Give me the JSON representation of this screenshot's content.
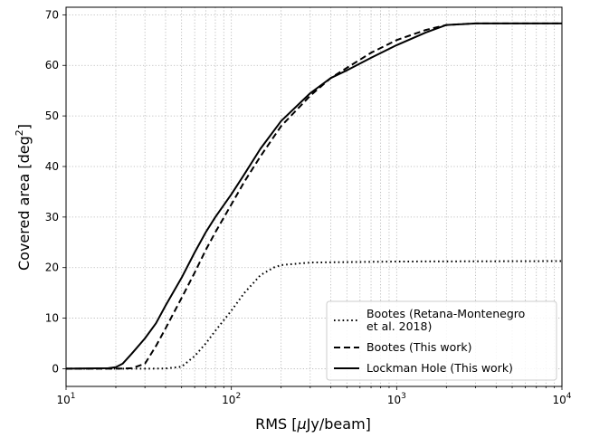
{
  "chart_data": {
    "type": "line",
    "xscale": "log",
    "xlim": [
      10,
      10000
    ],
    "ylim": [
      -3.5,
      71.5
    ],
    "xlabel_parts": [
      "RMS [",
      "μ",
      "Jy/beam]"
    ],
    "ylabel_parts": [
      "Covered area [deg",
      "2",
      "]"
    ],
    "x_ticks": [
      {
        "value": 10,
        "base": "10",
        "exp": "1"
      },
      {
        "value": 100,
        "base": "10",
        "exp": "2"
      },
      {
        "value": 1000,
        "base": "10",
        "exp": "3"
      },
      {
        "value": 10000,
        "base": "10",
        "exp": "4"
      }
    ],
    "y_ticks": [
      0,
      10,
      20,
      30,
      40,
      50,
      60,
      70
    ],
    "grid": true,
    "legend_position": "lower right",
    "series": [
      {
        "name": [
          "Bootes (Retana-Montenegro",
          " et al. 2018)"
        ],
        "style": "dotted",
        "points": [
          [
            10,
            0
          ],
          [
            20,
            0
          ],
          [
            30,
            0
          ],
          [
            40,
            0.05
          ],
          [
            50,
            0.4
          ],
          [
            60,
            2.5
          ],
          [
            70,
            5
          ],
          [
            80,
            7.5
          ],
          [
            100,
            11.5
          ],
          [
            120,
            15
          ],
          [
            150,
            18.5
          ],
          [
            180,
            20
          ],
          [
            200,
            20.5
          ],
          [
            300,
            21
          ],
          [
            1000,
            21.2
          ],
          [
            10000,
            21.3
          ]
        ]
      },
      {
        "name": [
          "Bootes (This work)"
        ],
        "style": "dashed",
        "points": [
          [
            10,
            0
          ],
          [
            20,
            0
          ],
          [
            25,
            0.1
          ],
          [
            30,
            1
          ],
          [
            35,
            4.5
          ],
          [
            40,
            8
          ],
          [
            50,
            14
          ],
          [
            60,
            19
          ],
          [
            70,
            23.5
          ],
          [
            80,
            27
          ],
          [
            100,
            32.5
          ],
          [
            120,
            37
          ],
          [
            150,
            42
          ],
          [
            200,
            48
          ],
          [
            300,
            54
          ],
          [
            400,
            57.5
          ],
          [
            500,
            59.5
          ],
          [
            700,
            62.5
          ],
          [
            1000,
            65
          ],
          [
            1500,
            67
          ],
          [
            2000,
            68
          ],
          [
            3000,
            68.3
          ],
          [
            10000,
            68.3
          ]
        ]
      },
      {
        "name": [
          "Lockman Hole (This work)"
        ],
        "style": "solid",
        "points": [
          [
            10,
            0
          ],
          [
            18,
            0.1
          ],
          [
            20,
            0.3
          ],
          [
            22,
            1
          ],
          [
            25,
            3
          ],
          [
            30,
            6
          ],
          [
            35,
            9
          ],
          [
            40,
            12.5
          ],
          [
            50,
            18
          ],
          [
            60,
            23
          ],
          [
            70,
            27
          ],
          [
            80,
            30
          ],
          [
            100,
            34.5
          ],
          [
            120,
            38.5
          ],
          [
            150,
            43.5
          ],
          [
            200,
            49
          ],
          [
            300,
            54.5
          ],
          [
            400,
            57.5
          ],
          [
            500,
            59
          ],
          [
            700,
            61.5
          ],
          [
            1000,
            64
          ],
          [
            1500,
            66.5
          ],
          [
            2000,
            68
          ],
          [
            3000,
            68.3
          ],
          [
            10000,
            68.3
          ]
        ]
      }
    ]
  }
}
